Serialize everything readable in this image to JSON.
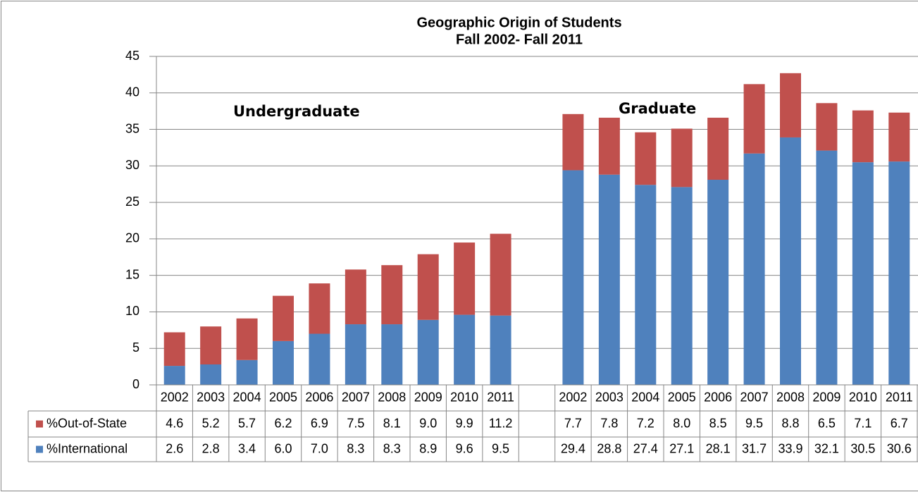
{
  "chart_data": {
    "type": "stacked_bar",
    "title": "Geographic Origin of Students",
    "subtitle": "Fall 2002- Fall 2011",
    "annotations": [
      "Undergraduate",
      "Graduate"
    ],
    "categories": [
      "2002",
      "2003",
      "2004",
      "2005",
      "2006",
      "2007",
      "2008",
      "2009",
      "2010",
      "2011",
      null,
      "2002",
      "2003",
      "2004",
      "2005",
      "2006",
      "2007",
      "2008",
      "2009",
      "2010",
      "2011"
    ],
    "series": [
      {
        "name": "%Out-of-State",
        "color": "#c0504d",
        "values": [
          4.6,
          5.2,
          5.7,
          6.2,
          6.9,
          7.5,
          8.1,
          9.0,
          9.9,
          11.2,
          null,
          7.7,
          7.8,
          7.2,
          8.0,
          8.5,
          9.5,
          8.8,
          6.5,
          7.1,
          6.7
        ],
        "value_labels": [
          "4.6",
          "5.2",
          "5.7",
          "6.2",
          "6.9",
          "7.5",
          "8.1",
          "9.0",
          "9.9",
          "11.2",
          null,
          "7.7",
          "7.8",
          "7.2",
          "8.0",
          "8.5",
          "9.5",
          "8.8",
          "6.5",
          "7.1",
          "6.7"
        ]
      },
      {
        "name": "%International",
        "color": "#4f81bd",
        "values": [
          2.6,
          2.8,
          3.4,
          6.0,
          7.0,
          8.3,
          8.3,
          8.9,
          9.6,
          9.5,
          null,
          29.4,
          28.8,
          27.4,
          27.1,
          28.1,
          31.7,
          33.9,
          32.1,
          30.5,
          30.6
        ],
        "value_labels": [
          "2.6",
          "2.8",
          "3.4",
          "6.0",
          "7.0",
          "8.3",
          "8.3",
          "8.9",
          "9.6",
          "9.5",
          null,
          "29.4",
          "28.8",
          "27.4",
          "27.1",
          "28.1",
          "31.7",
          "33.9",
          "32.1",
          "30.5",
          "30.6"
        ]
      }
    ],
    "ylim": [
      0,
      45
    ],
    "yticks": [
      0,
      5,
      10,
      15,
      20,
      25,
      30,
      35,
      40,
      45
    ],
    "grid": true
  }
}
